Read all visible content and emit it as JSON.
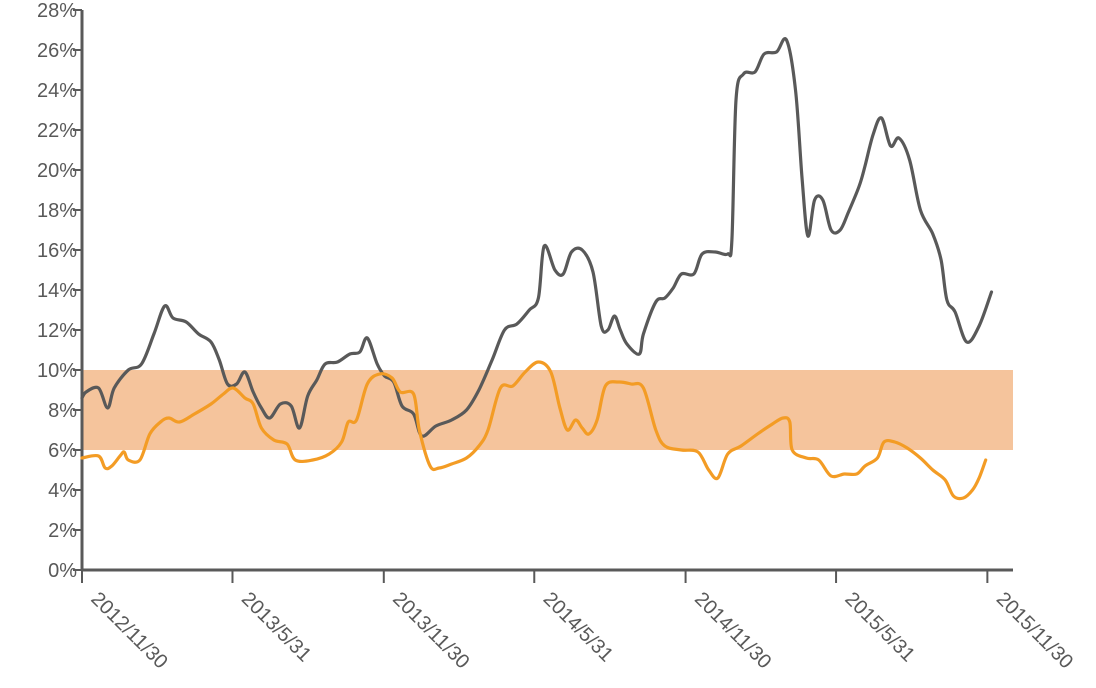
{
  "chart_data": {
    "type": "line",
    "title": "",
    "xlabel": "",
    "ylabel": "",
    "y_unit": "%",
    "ylim": [
      0,
      28
    ],
    "y_ticks": [
      0,
      2,
      4,
      6,
      8,
      10,
      12,
      14,
      16,
      18,
      20,
      22,
      24,
      26,
      28
    ],
    "y_tick_labels": [
      "0%",
      "2%",
      "4%",
      "6%",
      "8%",
      "10%",
      "12%",
      "14%",
      "16%",
      "18%",
      "20%",
      "22%",
      "24%",
      "26%",
      "28%"
    ],
    "xlim": [
      "2012-11-30",
      "2015-12-31"
    ],
    "x_ticks": [
      "2012-11-30",
      "2013-05-31",
      "2013-11-30",
      "2014-05-31",
      "2014-11-30",
      "2015-05-31",
      "2015-11-30"
    ],
    "x_tick_labels": [
      "2012/11/30",
      "2013/5/31",
      "2013/11/30",
      "2014/5/31",
      "2014/11/30",
      "2015/5/31",
      "2015/11/30"
    ],
    "grid": false,
    "legend": "none",
    "band": {
      "from": 6,
      "to": 10,
      "color": "#F5C49C"
    },
    "series": [
      {
        "color": "#595959",
        "points": [
          [
            "2012-11-30",
            8.6
          ],
          [
            "2012-12-05",
            8.9
          ],
          [
            "2012-12-20",
            9.1
          ],
          [
            "2012-12-31",
            8.1
          ],
          [
            "2013-01-08",
            9.1
          ],
          [
            "2013-01-25",
            10.0
          ],
          [
            "2013-02-10",
            10.3
          ],
          [
            "2013-02-25",
            11.8
          ],
          [
            "2013-03-10",
            13.2
          ],
          [
            "2013-03-20",
            12.6
          ],
          [
            "2013-04-05",
            12.4
          ],
          [
            "2013-04-20",
            11.8
          ],
          [
            "2013-05-05",
            11.4
          ],
          [
            "2013-05-15",
            10.5
          ],
          [
            "2013-05-25",
            9.3
          ],
          [
            "2013-06-05",
            9.3
          ],
          [
            "2013-06-15",
            9.9
          ],
          [
            "2013-06-25",
            8.9
          ],
          [
            "2013-07-05",
            8.1
          ],
          [
            "2013-07-15",
            7.6
          ],
          [
            "2013-07-28",
            8.3
          ],
          [
            "2013-08-10",
            8.2
          ],
          [
            "2013-08-20",
            7.1
          ],
          [
            "2013-08-30",
            8.7
          ],
          [
            "2013-09-10",
            9.5
          ],
          [
            "2013-09-20",
            10.3
          ],
          [
            "2013-10-05",
            10.4
          ],
          [
            "2013-10-20",
            10.8
          ],
          [
            "2013-11-01",
            10.9
          ],
          [
            "2013-11-10",
            11.6
          ],
          [
            "2013-11-22",
            10.3
          ],
          [
            "2013-12-01",
            9.7
          ],
          [
            "2013-12-12",
            9.4
          ],
          [
            "2013-12-22",
            8.2
          ],
          [
            "2014-01-05",
            7.8
          ],
          [
            "2014-01-15",
            6.7
          ],
          [
            "2014-02-01",
            7.2
          ],
          [
            "2014-02-20",
            7.5
          ],
          [
            "2014-03-10",
            8.0
          ],
          [
            "2014-03-25",
            9.0
          ],
          [
            "2014-04-10",
            10.5
          ],
          [
            "2014-04-25",
            12.0
          ],
          [
            "2014-05-10",
            12.3
          ],
          [
            "2014-05-25",
            13.0
          ],
          [
            "2014-06-05",
            13.6
          ],
          [
            "2014-06-12",
            16.2
          ],
          [
            "2014-06-25",
            15.0
          ],
          [
            "2014-07-05",
            14.8
          ],
          [
            "2014-07-15",
            15.9
          ],
          [
            "2014-07-28",
            16.0
          ],
          [
            "2014-08-10",
            14.9
          ],
          [
            "2014-08-20",
            12.2
          ],
          [
            "2014-08-28",
            12.0
          ],
          [
            "2014-09-05",
            12.7
          ],
          [
            "2014-09-12",
            12.0
          ],
          [
            "2014-09-20",
            11.3
          ],
          [
            "2014-10-05",
            10.8
          ],
          [
            "2014-10-10",
            11.8
          ],
          [
            "2014-10-25",
            13.4
          ],
          [
            "2014-11-05",
            13.6
          ],
          [
            "2014-11-15",
            14.1
          ],
          [
            "2014-11-25",
            14.8
          ],
          [
            "2014-12-10",
            14.8
          ],
          [
            "2014-12-20",
            15.8
          ],
          [
            "2015-01-05",
            15.9
          ],
          [
            "2015-01-20",
            15.8
          ],
          [
            "2015-01-25",
            16.5
          ],
          [
            "2015-01-30",
            23.5
          ],
          [
            "2015-02-08",
            24.8
          ],
          [
            "2015-02-22",
            24.9
          ],
          [
            "2015-03-05",
            25.8
          ],
          [
            "2015-03-20",
            25.9
          ],
          [
            "2015-04-01",
            26.5
          ],
          [
            "2015-04-12",
            24.0
          ],
          [
            "2015-04-20",
            19.5
          ],
          [
            "2015-04-27",
            16.7
          ],
          [
            "2015-05-05",
            18.5
          ],
          [
            "2015-05-15",
            18.5
          ],
          [
            "2015-05-25",
            17.0
          ],
          [
            "2015-06-05",
            17.0
          ],
          [
            "2015-06-15",
            17.9
          ],
          [
            "2015-06-28",
            19.2
          ],
          [
            "2015-07-05",
            20.2
          ],
          [
            "2015-07-15",
            21.8
          ],
          [
            "2015-07-25",
            22.6
          ],
          [
            "2015-08-05",
            21.2
          ],
          [
            "2015-08-15",
            21.6
          ],
          [
            "2015-08-28",
            20.5
          ],
          [
            "2015-09-10",
            18.0
          ],
          [
            "2015-09-25",
            16.8
          ],
          [
            "2015-10-05",
            15.5
          ],
          [
            "2015-10-12",
            13.5
          ],
          [
            "2015-10-22",
            12.9
          ],
          [
            "2015-11-05",
            11.4
          ],
          [
            "2015-11-20",
            12.2
          ],
          [
            "2015-12-05",
            13.9
          ]
        ]
      },
      {
        "color": "#F39C25",
        "points": [
          [
            "2012-11-30",
            5.6
          ],
          [
            "2012-12-20",
            5.7
          ],
          [
            "2012-12-28",
            5.1
          ],
          [
            "2013-01-05",
            5.2
          ],
          [
            "2013-01-15",
            5.7
          ],
          [
            "2013-01-20",
            5.9
          ],
          [
            "2013-01-25",
            5.5
          ],
          [
            "2013-02-08",
            5.5
          ],
          [
            "2013-02-20",
            6.8
          ],
          [
            "2013-03-05",
            7.4
          ],
          [
            "2013-03-15",
            7.6
          ],
          [
            "2013-03-28",
            7.4
          ],
          [
            "2013-04-15",
            7.8
          ],
          [
            "2013-05-05",
            8.3
          ],
          [
            "2013-05-20",
            8.8
          ],
          [
            "2013-06-01",
            9.1
          ],
          [
            "2013-06-15",
            8.6
          ],
          [
            "2013-06-25",
            8.3
          ],
          [
            "2013-07-05",
            7.1
          ],
          [
            "2013-07-20",
            6.5
          ],
          [
            "2013-08-05",
            6.3
          ],
          [
            "2013-08-15",
            5.5
          ],
          [
            "2013-09-05",
            5.5
          ],
          [
            "2013-09-25",
            5.8
          ],
          [
            "2013-10-10",
            6.4
          ],
          [
            "2013-10-18",
            7.4
          ],
          [
            "2013-10-28",
            7.5
          ],
          [
            "2013-11-10",
            9.3
          ],
          [
            "2013-11-25",
            9.8
          ],
          [
            "2013-12-10",
            9.6
          ],
          [
            "2013-12-20",
            8.9
          ],
          [
            "2014-01-05",
            8.8
          ],
          [
            "2014-01-12",
            7.0
          ],
          [
            "2014-01-25",
            5.2
          ],
          [
            "2014-02-05",
            5.1
          ],
          [
            "2014-02-20",
            5.3
          ],
          [
            "2014-03-10",
            5.6
          ],
          [
            "2014-03-25",
            6.2
          ],
          [
            "2014-04-05",
            7.0
          ],
          [
            "2014-04-20",
            9.1
          ],
          [
            "2014-05-05",
            9.2
          ],
          [
            "2014-05-20",
            9.9
          ],
          [
            "2014-06-05",
            10.4
          ],
          [
            "2014-06-20",
            9.9
          ],
          [
            "2014-07-01",
            8.1
          ],
          [
            "2014-07-10",
            7.0
          ],
          [
            "2014-07-20",
            7.5
          ],
          [
            "2014-07-28",
            7.1
          ],
          [
            "2014-08-05",
            6.8
          ],
          [
            "2014-08-15",
            7.5
          ],
          [
            "2014-08-25",
            9.2
          ],
          [
            "2014-09-10",
            9.4
          ],
          [
            "2014-09-25",
            9.3
          ],
          [
            "2014-10-10",
            9.1
          ],
          [
            "2014-10-25",
            7.0
          ],
          [
            "2014-11-05",
            6.2
          ],
          [
            "2014-11-25",
            6.0
          ],
          [
            "2014-12-15",
            5.9
          ],
          [
            "2014-12-28",
            5.0
          ],
          [
            "2015-01-08",
            4.6
          ],
          [
            "2015-01-20",
            5.8
          ],
          [
            "2015-02-05",
            6.2
          ],
          [
            "2015-02-25",
            6.8
          ],
          [
            "2015-03-15",
            7.3
          ],
          [
            "2015-03-28",
            7.6
          ],
          [
            "2015-04-05",
            7.4
          ],
          [
            "2015-04-08",
            6.0
          ],
          [
            "2015-04-25",
            5.6
          ],
          [
            "2015-05-10",
            5.5
          ],
          [
            "2015-05-25",
            4.7
          ],
          [
            "2015-06-10",
            4.8
          ],
          [
            "2015-06-25",
            4.8
          ],
          [
            "2015-07-05",
            5.2
          ],
          [
            "2015-07-20",
            5.6
          ],
          [
            "2015-07-28",
            6.4
          ],
          [
            "2015-08-10",
            6.4
          ],
          [
            "2015-08-25",
            6.1
          ],
          [
            "2015-09-10",
            5.6
          ],
          [
            "2015-09-25",
            5.0
          ],
          [
            "2015-10-10",
            4.5
          ],
          [
            "2015-10-20",
            3.7
          ],
          [
            "2015-11-01",
            3.6
          ],
          [
            "2015-11-12",
            4.0
          ],
          [
            "2015-11-20",
            4.6
          ],
          [
            "2015-11-28",
            5.5
          ]
        ]
      }
    ]
  }
}
